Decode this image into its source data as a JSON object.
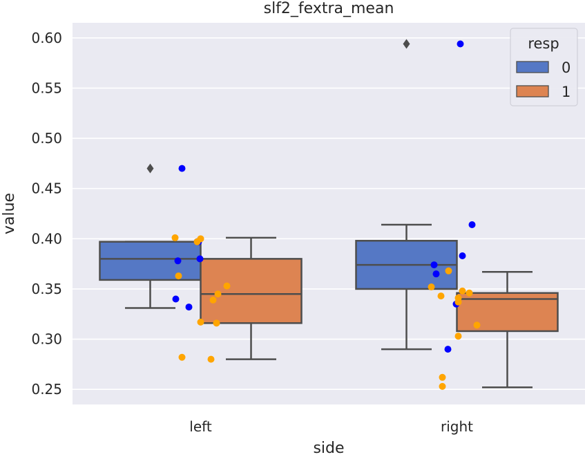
{
  "chart_data": {
    "type": "boxplot",
    "title": "slf2_fextra_mean",
    "xlabel": "side",
    "ylabel": "value",
    "categories": [
      "left",
      "right"
    ],
    "ylim": [
      0.235,
      0.615
    ],
    "yticks": [
      0.25,
      0.3,
      0.35,
      0.4,
      0.45,
      0.5,
      0.55,
      0.6
    ],
    "ytick_labels": [
      "0.25",
      "0.30",
      "0.35",
      "0.40",
      "0.45",
      "0.50",
      "0.55",
      "0.60"
    ],
    "grid": true,
    "legend": {
      "title": "resp",
      "position": "top-right",
      "entries": [
        {
          "label": "0",
          "color": "#5578c5"
        },
        {
          "label": "1",
          "color": "#dd8452"
        }
      ]
    },
    "series": [
      {
        "name": "0",
        "box_color": "#5578c5",
        "point_color": "#0000ff",
        "boxes": [
          {
            "category": "left",
            "whisker_low": 0.331,
            "q1": 0.359,
            "median": 0.38,
            "q3": 0.397,
            "whisker_high": 0.397,
            "outliers": [
              0.47
            ]
          },
          {
            "category": "right",
            "whisker_low": 0.29,
            "q1": 0.35,
            "median": 0.374,
            "q3": 0.398,
            "whisker_high": 0.414,
            "outliers": [
              0.594
            ]
          }
        ],
        "points": [
          {
            "category": "left",
            "values": [
              0.47,
              0.397,
              0.397,
              0.38,
              0.378,
              0.34,
              0.332
            ]
          },
          {
            "category": "right",
            "values": [
              0.594,
              0.414,
              0.383,
              0.374,
              0.365,
              0.335,
              0.29
            ]
          }
        ]
      },
      {
        "name": "1",
        "box_color": "#dd8452",
        "point_color": "#ffa500",
        "boxes": [
          {
            "category": "left",
            "whisker_low": 0.28,
            "q1": 0.316,
            "median": 0.345,
            "q3": 0.38,
            "whisker_high": 0.401,
            "outliers": []
          },
          {
            "category": "right",
            "whisker_low": 0.252,
            "q1": 0.308,
            "median": 0.34,
            "q3": 0.346,
            "whisker_high": 0.367,
            "outliers": []
          }
        ],
        "points": [
          {
            "category": "left",
            "values": [
              0.401,
              0.4,
              0.397,
              0.363,
              0.353,
              0.345,
              0.339,
              0.317,
              0.316,
              0.282,
              0.28
            ]
          },
          {
            "category": "right",
            "values": [
              0.368,
              0.352,
              0.348,
              0.346,
              0.343,
              0.341,
              0.337,
              0.314,
              0.303,
              0.262,
              0.253
            ]
          }
        ]
      }
    ]
  }
}
